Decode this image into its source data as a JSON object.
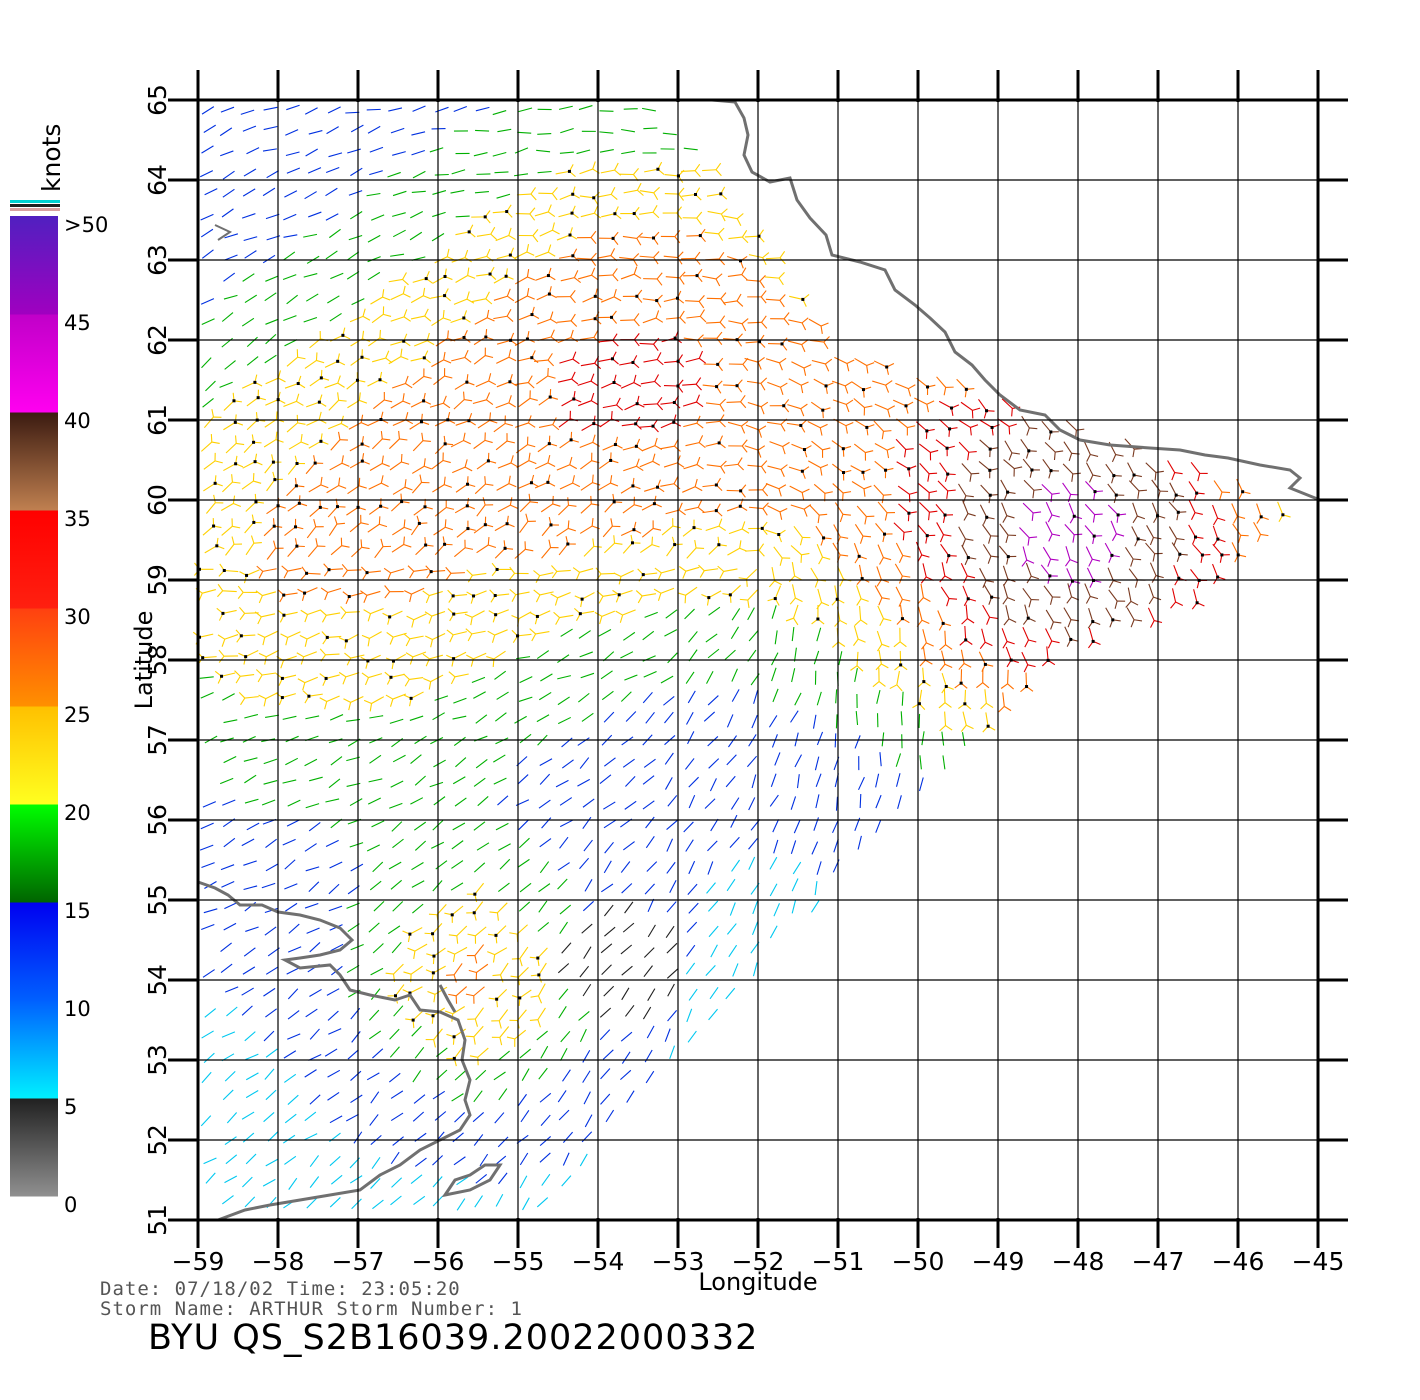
{
  "map": {
    "projection": "equirectangular",
    "lon_range": [
      -59,
      -45
    ],
    "lat_range": [
      51,
      65
    ],
    "lon_ticks": [
      "−59",
      "−58",
      "−57",
      "−56",
      "−55",
      "−54",
      "−53",
      "−52",
      "−51",
      "−50",
      "−49",
      "−48",
      "−47",
      "−46",
      "−45"
    ],
    "lat_ticks": [
      "51",
      "52",
      "53",
      "54",
      "55",
      "56",
      "57",
      "58",
      "59",
      "60",
      "61",
      "62",
      "63",
      "64",
      "65"
    ],
    "xlabel": "Longitude",
    "ylabel": "Latitude",
    "grid": true,
    "coastline_color": "#707070",
    "grid_color": "#000000"
  },
  "legend": {
    "unit": "knots",
    "labels": [
      ">50",
      "45",
      "40",
      "35",
      "30",
      "25",
      "20",
      "15",
      "10",
      "5",
      "0"
    ],
    "bands": [
      {
        "range": "0-5",
        "colors": [
          "#909090",
          "#202020"
        ]
      },
      {
        "range": "5-10",
        "colors": [
          "#00f0ff",
          "#0060ff"
        ]
      },
      {
        "range": "10-15",
        "colors": [
          "#0060ff",
          "#0000f0"
        ]
      },
      {
        "range": "15-20",
        "colors": [
          "#006400",
          "#00ff00"
        ]
      },
      {
        "range": "20-25",
        "colors": [
          "#ffff20",
          "#ffc000"
        ]
      },
      {
        "range": "25-30",
        "colors": [
          "#ff9000",
          "#ff4010"
        ]
      },
      {
        "range": "30-35",
        "colors": [
          "#ff2010",
          "#ff0000"
        ]
      },
      {
        "range": "35-40",
        "colors": [
          "#c08050",
          "#3a1a10"
        ]
      },
      {
        "range": "40-45",
        "colors": [
          "#ff00f0",
          "#c000c8"
        ]
      },
      {
        "range": "45-50",
        "colors": [
          "#a000c0",
          "#5020c0"
        ]
      }
    ]
  },
  "info": {
    "date_line": "Date: 07/18/02   Time: 23:05:20",
    "storm_line": "Storm Name: ARTHUR   Storm Number: 1",
    "product_id": "BYU QS_S2B16039.20022000332"
  },
  "wind_field": {
    "description_colors": {
      "calm": "#000000",
      "light": "#00c8ff",
      "moderate": "#0020e0",
      "fresh": "#00b000",
      "strong": "#ffd000",
      "gale": "#ff6000",
      "storm": "#e00000",
      "severe": "#b000c0"
    },
    "swath_polygon_lonlat": [
      [
        -58.9,
        65.0
      ],
      [
        -53.2,
        65.0
      ],
      [
        -51.0,
        62.0
      ],
      [
        -45.3,
        60.0
      ],
      [
        -46.5,
        58.8
      ],
      [
        -48.0,
        58.2
      ],
      [
        -49.5,
        56.8
      ],
      [
        -51.2,
        55.0
      ],
      [
        -53.5,
        52.5
      ],
      [
        -54.8,
        51.0
      ],
      [
        -56.5,
        51.0
      ],
      [
        -58.9,
        51.0
      ]
    ]
  }
}
